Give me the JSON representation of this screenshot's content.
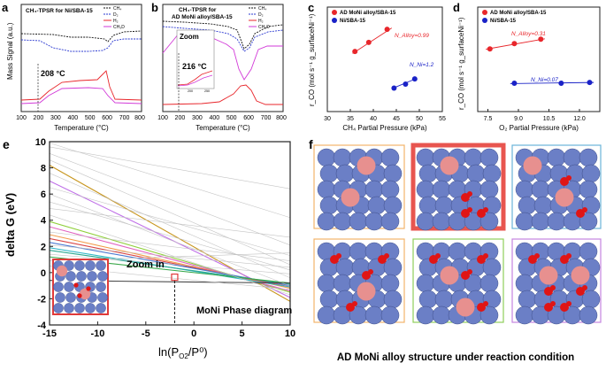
{
  "panels": {
    "a": {
      "letter": "a",
      "title": "CH₄-TPSR for Ni/SBA-15",
      "xlabel": "Temperature (°C)",
      "ylabel": "Mass Signal (a.u.)",
      "xticks": [
        "100",
        "200",
        "300",
        "400",
        "500",
        "600",
        "700",
        "800"
      ],
      "annotation": "208 °C",
      "legend": [
        "CH₄",
        "D₂",
        "H₂",
        "CH₃D"
      ]
    },
    "b": {
      "letter": "b",
      "title_line1": "CH₄-TPSR for",
      "title_line2": "AD MoNi alloy/SBA-15",
      "xlabel": "Temperature (°C)",
      "xticks": [
        "100",
        "200",
        "300",
        "400",
        "500",
        "600",
        "700",
        "800"
      ],
      "zoom_label": "Zoom",
      "annotation": "216 °C",
      "inset_ticks": [
        "200",
        "250"
      ],
      "legend": [
        "CH₄",
        "D₂",
        "H₂",
        "CH₃D"
      ]
    },
    "e": {
      "letter": "e",
      "ylabel": "delta G (eV)",
      "xlabel_main": "ln(P",
      "xlabel_sub": "O2",
      "xlabel_end": "/P⁰)",
      "zoom_label": "Zoom in",
      "diagram_label": "MoNi Phase diagram"
    },
    "f": {
      "letter": "f",
      "caption": "AD MoNi alloy structure under reaction condition"
    }
  },
  "chart_data": [
    {
      "id": "c",
      "type": "scatter",
      "letter": "c",
      "xlabel": "CH₄ Partial Pressure (kPa)",
      "ylabel": "r_CO (mol s⁻¹ g_surfaceNi⁻¹)",
      "xlim": [
        30,
        55
      ],
      "ylim": [
        0.4,
        1.2
      ],
      "xticks": [
        30,
        35,
        40,
        45,
        50,
        55
      ],
      "yticks": [
        0.4,
        0.6,
        0.8,
        1.0,
        1.2
      ],
      "series": [
        {
          "name": "AD MoNi alloy/SBA-15",
          "color": "#e8262b",
          "x": [
            36,
            39,
            43
          ],
          "y": [
            0.86,
            0.93,
            1.03
          ],
          "fit": [
            [
              35.5,
              0.845
            ],
            [
              44,
              1.04
            ]
          ],
          "order_label": "N_Alloy=0.99"
        },
        {
          "name": "Ni/SBA-15",
          "color": "#1a22c7",
          "x": [
            44.5,
            47,
            49
          ],
          "y": [
            0.58,
            0.61,
            0.65
          ],
          "fit": [
            [
              44,
              0.575
            ],
            [
              49.5,
              0.655
            ]
          ],
          "order_label": "N_Ni=1.2"
        }
      ]
    },
    {
      "id": "d",
      "type": "scatter",
      "letter": "d",
      "xlabel": "O₂ Partial Pressure (kPa)",
      "ylabel": "r_CO (mol s⁻¹ g_surfaceNi⁻¹)",
      "xlim": [
        7,
        13
      ],
      "ylim": [
        0.4,
        1.8
      ],
      "xticks": [
        7.5,
        9.0,
        10.5,
        12.0
      ],
      "yticks": [
        0.4,
        0.6,
        0.8,
        1.0,
        1.2,
        1.4,
        1.6,
        1.8
      ],
      "series": [
        {
          "name": "AD MoNi alloy/SBA-15",
          "color": "#e8262b",
          "x": [
            7.6,
            8.8,
            10.1
          ],
          "y": [
            1.24,
            1.31,
            1.37
          ],
          "fit": [
            [
              7.4,
              1.235
            ],
            [
              10.3,
              1.375
            ]
          ],
          "order_label": "N_Alloy=0.31"
        },
        {
          "name": "Ni/SBA-15",
          "color": "#1a22c7",
          "x": [
            8.8,
            11.1,
            12.5
          ],
          "y": [
            0.78,
            0.78,
            0.79
          ],
          "fit": [
            [
              8.6,
              0.775
            ],
            [
              12.7,
              0.79
            ]
          ],
          "order_label": "N_Ni=0.07"
        }
      ]
    },
    {
      "id": "e",
      "type": "line",
      "title": "MoNi Phase diagram",
      "xlabel": "ln(P_O2/P⁰)",
      "ylabel": "delta G (eV)",
      "xlim": [
        -15,
        10
      ],
      "ylim": [
        -4,
        10
      ],
      "xticks": [
        -15,
        -10,
        -5,
        0,
        5,
        10
      ],
      "yticks": [
        -4,
        -2,
        0,
        2,
        4,
        6,
        8,
        10
      ],
      "highlight_point": [
        -2,
        -0.35
      ],
      "series": [
        {
          "name": "gold",
          "color": "#c8961e",
          "y_start": 8.2,
          "y_end": -2.2
        },
        {
          "name": "violet",
          "color": "#c070e8",
          "y_start": 7.0,
          "y_end": -1.9
        },
        {
          "name": "lime",
          "color": "#8fcf3a",
          "y_start": 3.9,
          "y_end": -1.5
        },
        {
          "name": "magenta",
          "color": "#e060c0",
          "y_start": 3.5,
          "y_end": -1.4
        },
        {
          "name": "orange",
          "color": "#f29a4a",
          "y_start": 2.9,
          "y_end": -1.2
        },
        {
          "name": "red",
          "color": "#d94545",
          "y_start": 2.6,
          "y_end": -1.1
        },
        {
          "name": "blue",
          "color": "#4a78d0",
          "y_start": 2.3,
          "y_end": -1.0
        },
        {
          "name": "cyan",
          "color": "#36b8c8",
          "y_start": 1.9,
          "y_end": -1.1
        },
        {
          "name": "teal",
          "color": "#2aa890",
          "y_start": 1.7,
          "y_end": -0.9
        },
        {
          "name": "green",
          "color": "#3aa84a",
          "y_start": 1.2,
          "y_end": -0.8
        },
        {
          "name": "black",
          "color": "#444444",
          "y_start": -0.6,
          "y_end": -0.8
        },
        {
          "name": "grey",
          "color": "#c4c4c4",
          "y_start": 9.6,
          "y_end": 6.4
        },
        {
          "name": "grey",
          "color": "#c4c4c4",
          "y_start": 9.9,
          "y_end": 4.2
        },
        {
          "name": "grey",
          "color": "#c4c4c4",
          "y_start": 9.1,
          "y_end": 2.1
        },
        {
          "name": "grey",
          "color": "#c4c4c4",
          "y_start": 8.6,
          "y_end": 0.6
        },
        {
          "name": "grey",
          "color": "#c4c4c4",
          "y_start": 7.6,
          "y_end": -0.4
        },
        {
          "name": "grey",
          "color": "#c4c4c4",
          "y_start": 6.5,
          "y_end": 1.3
        },
        {
          "name": "grey",
          "color": "#c4c4c4",
          "y_start": 6.0,
          "y_end": -1.0
        },
        {
          "name": "grey",
          "color": "#c4c4c4",
          "y_start": 5.4,
          "y_end": 0.2
        },
        {
          "name": "grey",
          "color": "#c4c4c4",
          "y_start": 4.9,
          "y_end": 2.7
        },
        {
          "name": "grey",
          "color": "#c4c4c4",
          "y_start": 4.4,
          "y_end": -1.7
        },
        {
          "name": "grey",
          "color": "#c4c4c4",
          "y_start": 3.1,
          "y_end": 0.9
        },
        {
          "name": "grey",
          "color": "#c4c4c4",
          "y_start": 2.1,
          "y_end": 0.4
        },
        {
          "name": "grey",
          "color": "#c4c4c4",
          "y_start": 1.4,
          "y_end": -0.1
        },
        {
          "name": "grey",
          "color": "#c4c4c4",
          "y_start": 0.9,
          "y_end": 1.5
        },
        {
          "name": "grey",
          "color": "#c4c4c4",
          "y_start": 0.5,
          "y_end": -1.3
        }
      ]
    }
  ]
}
